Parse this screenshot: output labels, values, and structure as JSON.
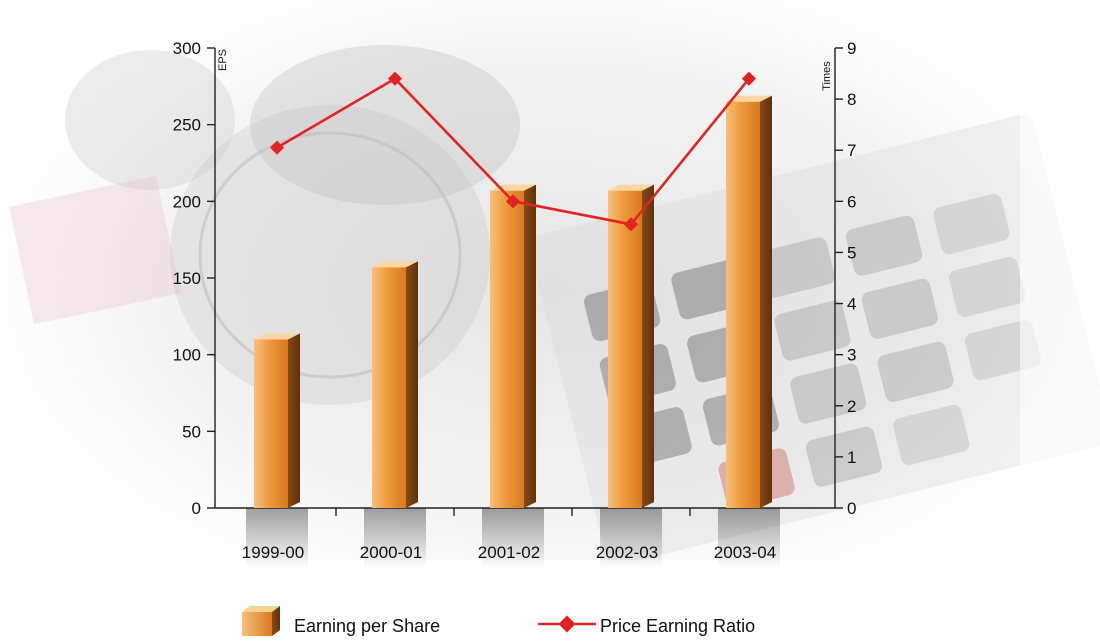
{
  "chart_data": {
    "type": "bar",
    "categories": [
      "1999-00",
      "2000-01",
      "2001-02",
      "2002-03",
      "2003-04"
    ],
    "series": [
      {
        "name": "Earning per Share",
        "type": "bar",
        "axis": "left",
        "values": [
          110,
          157,
          207,
          207,
          265
        ],
        "color": "#E8892A"
      },
      {
        "name": "Price Earning Ratio",
        "type": "line",
        "axis": "right",
        "values": [
          7.05,
          8.4,
          6.0,
          5.55,
          8.4
        ],
        "color": "#E02424"
      }
    ],
    "ylabel": "EPS",
    "ylabel_right": "Times",
    "ylim": [
      0,
      300
    ],
    "ylim_right": [
      0,
      9
    ],
    "yticks": [
      "0",
      "50",
      "100",
      "150",
      "200",
      "250",
      "300"
    ],
    "yticks_right": [
      "0",
      "1",
      "2",
      "3",
      "4",
      "5",
      "6",
      "7",
      "8",
      "9"
    ],
    "legend": {
      "position": "bottom",
      "items": [
        "Earning per Share",
        "Price Earning Ratio"
      ]
    },
    "grid": false,
    "background": "coins-and-calculator-photo"
  }
}
